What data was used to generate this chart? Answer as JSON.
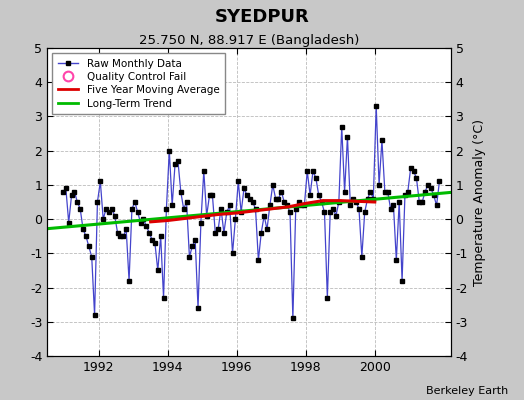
{
  "title": "SYEDPUR",
  "subtitle": "25.750 N, 88.917 E (Bangladesh)",
  "ylabel": "Temperature Anomaly (°C)",
  "credit": "Berkeley Earth",
  "ylim": [
    -4,
    5
  ],
  "xlim": [
    1990.5,
    2002.2
  ],
  "yticks": [
    -4,
    -3,
    -2,
    -1,
    0,
    1,
    2,
    3,
    4,
    5
  ],
  "xticks": [
    1992,
    1994,
    1996,
    1998,
    2000
  ],
  "fig_facecolor": "#c8c8c8",
  "plot_facecolor": "#ffffff",
  "raw_line_color": "#4444cc",
  "raw_marker_color": "#000000",
  "ma_color": "#dd0000",
  "trend_color": "#00bb00",
  "qc_color": "#ff44aa",
  "raw_data": [
    [
      1990.958,
      0.8
    ],
    [
      1991.042,
      0.9
    ],
    [
      1991.125,
      -0.1
    ],
    [
      1991.208,
      0.7
    ],
    [
      1991.292,
      0.8
    ],
    [
      1991.375,
      0.5
    ],
    [
      1991.458,
      0.3
    ],
    [
      1991.542,
      -0.3
    ],
    [
      1991.625,
      -0.5
    ],
    [
      1991.708,
      -0.8
    ],
    [
      1991.792,
      -1.1
    ],
    [
      1991.875,
      -2.8
    ],
    [
      1991.958,
      0.5
    ],
    [
      1992.042,
      1.1
    ],
    [
      1992.125,
      0.0
    ],
    [
      1992.208,
      0.3
    ],
    [
      1992.292,
      0.2
    ],
    [
      1992.375,
      0.3
    ],
    [
      1992.458,
      0.1
    ],
    [
      1992.542,
      -0.4
    ],
    [
      1992.625,
      -0.5
    ],
    [
      1992.708,
      -0.5
    ],
    [
      1992.792,
      -0.3
    ],
    [
      1992.875,
      -1.8
    ],
    [
      1992.958,
      0.3
    ],
    [
      1993.042,
      0.5
    ],
    [
      1993.125,
      0.2
    ],
    [
      1993.208,
      -0.1
    ],
    [
      1993.292,
      0.0
    ],
    [
      1993.375,
      -0.2
    ],
    [
      1993.458,
      -0.4
    ],
    [
      1993.542,
      -0.6
    ],
    [
      1993.625,
      -0.7
    ],
    [
      1993.708,
      -1.5
    ],
    [
      1993.792,
      -0.5
    ],
    [
      1993.875,
      -2.3
    ],
    [
      1993.958,
      0.3
    ],
    [
      1994.042,
      2.0
    ],
    [
      1994.125,
      0.4
    ],
    [
      1994.208,
      1.6
    ],
    [
      1994.292,
      1.7
    ],
    [
      1994.375,
      0.8
    ],
    [
      1994.458,
      0.3
    ],
    [
      1994.542,
      0.5
    ],
    [
      1994.625,
      -1.1
    ],
    [
      1994.708,
      -0.8
    ],
    [
      1994.792,
      -0.6
    ],
    [
      1994.875,
      -2.6
    ],
    [
      1994.958,
      -0.1
    ],
    [
      1995.042,
      1.4
    ],
    [
      1995.125,
      0.1
    ],
    [
      1995.208,
      0.7
    ],
    [
      1995.292,
      0.7
    ],
    [
      1995.375,
      -0.4
    ],
    [
      1995.458,
      -0.3
    ],
    [
      1995.542,
      0.3
    ],
    [
      1995.625,
      -0.4
    ],
    [
      1995.708,
      0.2
    ],
    [
      1995.792,
      0.4
    ],
    [
      1995.875,
      -1.0
    ],
    [
      1995.958,
      0.0
    ],
    [
      1996.042,
      1.1
    ],
    [
      1996.125,
      0.2
    ],
    [
      1996.208,
      0.9
    ],
    [
      1996.292,
      0.7
    ],
    [
      1996.375,
      0.6
    ],
    [
      1996.458,
      0.5
    ],
    [
      1996.542,
      0.3
    ],
    [
      1996.625,
      -1.2
    ],
    [
      1996.708,
      -0.4
    ],
    [
      1996.792,
      0.1
    ],
    [
      1996.875,
      -0.3
    ],
    [
      1996.958,
      0.4
    ],
    [
      1997.042,
      1.0
    ],
    [
      1997.125,
      0.6
    ],
    [
      1997.208,
      0.6
    ],
    [
      1997.292,
      0.8
    ],
    [
      1997.375,
      0.5
    ],
    [
      1997.458,
      0.4
    ],
    [
      1997.542,
      0.2
    ],
    [
      1997.625,
      -2.9
    ],
    [
      1997.708,
      0.3
    ],
    [
      1997.792,
      0.5
    ],
    [
      1997.875,
      0.4
    ],
    [
      1997.958,
      0.4
    ],
    [
      1998.042,
      1.4
    ],
    [
      1998.125,
      0.7
    ],
    [
      1998.208,
      1.4
    ],
    [
      1998.292,
      1.2
    ],
    [
      1998.375,
      0.7
    ],
    [
      1998.458,
      0.5
    ],
    [
      1998.542,
      0.2
    ],
    [
      1998.625,
      -2.3
    ],
    [
      1998.708,
      0.2
    ],
    [
      1998.792,
      0.3
    ],
    [
      1998.875,
      0.1
    ],
    [
      1998.958,
      0.5
    ],
    [
      1999.042,
      2.7
    ],
    [
      1999.125,
      0.8
    ],
    [
      1999.208,
      2.4
    ],
    [
      1999.292,
      0.4
    ],
    [
      1999.375,
      0.6
    ],
    [
      1999.458,
      0.5
    ],
    [
      1999.542,
      0.3
    ],
    [
      1999.625,
      -1.1
    ],
    [
      1999.708,
      0.2
    ],
    [
      1999.792,
      0.6
    ],
    [
      1999.875,
      0.8
    ],
    [
      1999.958,
      0.6
    ],
    [
      2000.042,
      3.3
    ],
    [
      2000.125,
      1.0
    ],
    [
      2000.208,
      2.3
    ],
    [
      2000.292,
      0.8
    ],
    [
      2000.375,
      0.8
    ],
    [
      2000.458,
      0.3
    ],
    [
      2000.542,
      0.4
    ],
    [
      2000.625,
      -1.2
    ],
    [
      2000.708,
      0.5
    ],
    [
      2000.792,
      -1.8
    ],
    [
      2000.875,
      0.7
    ],
    [
      2000.958,
      0.8
    ],
    [
      2001.042,
      1.5
    ],
    [
      2001.125,
      1.4
    ],
    [
      2001.208,
      1.2
    ],
    [
      2001.292,
      0.5
    ],
    [
      2001.375,
      0.5
    ],
    [
      2001.458,
      0.8
    ],
    [
      2001.542,
      1.0
    ],
    [
      2001.625,
      0.9
    ],
    [
      2001.708,
      0.7
    ],
    [
      2001.792,
      0.4
    ],
    [
      2001.875,
      1.1
    ]
  ],
  "trend_x": [
    1990.5,
    2002.2
  ],
  "trend_y": [
    -0.28,
    0.78
  ],
  "ma_x": [
    1993.5,
    1994.0,
    1994.5,
    1995.0,
    1995.5,
    1996.0,
    1996.5,
    1997.0,
    1997.5,
    1998.0,
    1998.5,
    1999.0,
    1999.5,
    2000.0
  ],
  "ma_y": [
    -0.08,
    -0.04,
    0.02,
    0.08,
    0.14,
    0.18,
    0.24,
    0.3,
    0.36,
    0.46,
    0.54,
    0.54,
    0.52,
    0.5
  ]
}
